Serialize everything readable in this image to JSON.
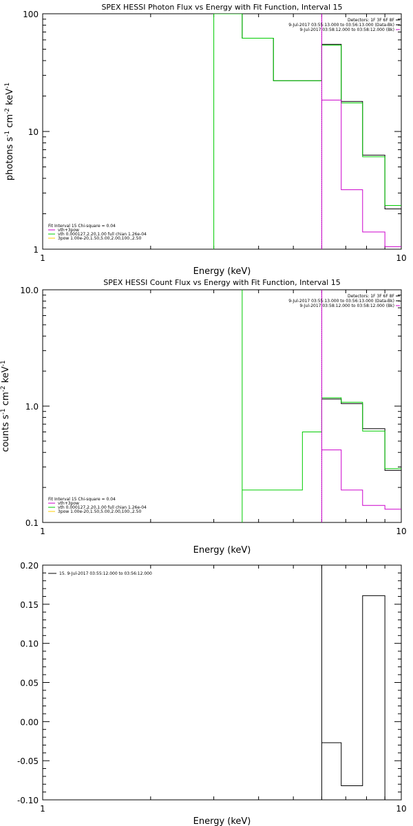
{
  "chart_data": [
    {
      "type": "line",
      "title": "SPEX HESSI Photon Flux vs Energy with Fit Function, Interval 15",
      "xlabel": "Energy (keV)",
      "ylabel_parts": [
        "photons s",
        "-1",
        " cm",
        "-2",
        " keV",
        "-1"
      ],
      "xscale": "log",
      "yscale": "log",
      "xlim": [
        1,
        10
      ],
      "ylim": [
        1,
        100
      ],
      "xticks": [
        {
          "v": 1,
          "label": "1"
        },
        {
          "v": 10,
          "label": "10"
        }
      ],
      "yticks": [
        {
          "v": 1,
          "label": "1"
        },
        {
          "v": 10,
          "label": "10"
        },
        {
          "v": 100,
          "label": "100"
        }
      ],
      "marker_line_x": 6,
      "header": [
        {
          "text": "Detectors: 1F 3F 6F 8F",
          "color": "#000000"
        },
        {
          "text": "9-Jul-2017 03:55:13.000 to 03:56:13.000 (Data-Bk)",
          "color": "#000000"
        },
        {
          "text": "9-Jul-2017 03:58:12.000 to 03:58:12.000 (Bk)",
          "color": "#cc00cc"
        }
      ],
      "legend": [
        {
          "text": "Fit Interval 15   Chi-square = 0.04",
          "color": "#000000"
        },
        {
          "text": "vth+3pow",
          "color": "#cc00cc"
        },
        {
          "text": "vth 0.000127,2.20,1.00  full chian 1.26e-04",
          "color": "#00cc00"
        },
        {
          "text": "3pow 1.00e-20,1.50,5.00,2.00,100.,2.50",
          "color": "#ffcc00"
        }
      ],
      "series": [
        {
          "color": "#000000",
          "edges": [
            3,
            3.6,
            4.4,
            5.3,
            6,
            6.8,
            7.8,
            9,
            10.2
          ],
          "values": [
            100,
            62,
            27,
            27,
            55,
            18,
            6.3,
            2.2
          ]
        },
        {
          "color": "#00cc00",
          "edges": [
            3,
            3.6,
            4.4,
            5.3,
            6,
            6.8,
            7.8,
            9,
            10.2
          ],
          "values": [
            100,
            62,
            27,
            27,
            54,
            17.5,
            6.1,
            2.35
          ]
        },
        {
          "color": "#cc00cc",
          "edges": [
            6,
            6.8,
            7.8,
            9,
            10.2
          ],
          "values": [
            18.5,
            3.2,
            1.4,
            1.05
          ]
        }
      ],
      "vlines": [
        {
          "x": 3,
          "color": "#00cc00"
        },
        {
          "x": 6,
          "color": "#cc00cc"
        }
      ]
    },
    {
      "type": "line",
      "title": "SPEX HESSI Count Flux vs Energy with Fit Function, Interval 15",
      "xlabel": "Energy (keV)",
      "ylabel_parts": [
        "counts s",
        "-1",
        " cm",
        "-2",
        " keV",
        "-1"
      ],
      "xscale": "log",
      "yscale": "log",
      "xlim": [
        1,
        10
      ],
      "ylim": [
        0.1,
        10
      ],
      "xticks": [
        {
          "v": 1,
          "label": "1"
        },
        {
          "v": 10,
          "label": "10"
        }
      ],
      "yticks": [
        {
          "v": 0.1,
          "label": "0.1"
        },
        {
          "v": 1,
          "label": "1.0"
        },
        {
          "v": 10,
          "label": "10.0"
        }
      ],
      "marker_line_x": 6,
      "header": [
        {
          "text": "Detectors: 1F 3F 6F 8F",
          "color": "#000000"
        },
        {
          "text": "9-Jul-2017 03:55:13.000 to 03:56:13.000 (Data-Bk)",
          "color": "#000000"
        },
        {
          "text": "9-Jul-2017 03:58:12.000 to 03:58:12.000 (Bk)",
          "color": "#cc00cc"
        }
      ],
      "legend": [
        {
          "text": "Fit Interval 15   Chi-square = 0.04",
          "color": "#000000"
        },
        {
          "text": "vth+3pow",
          "color": "#cc00cc"
        },
        {
          "text": "vth 0.000127,2.20,1.00  full chian 1.26e-04",
          "color": "#00cc00"
        },
        {
          "text": "3pow 1.00e-20,1.50,5.00,2.00,100.,2.50",
          "color": "#ffcc00"
        }
      ],
      "series": [
        {
          "color": "#000000",
          "edges": [
            6,
            6.8,
            7.8,
            9,
            10.2
          ],
          "values": [
            1.15,
            1.05,
            0.64,
            0.28
          ]
        },
        {
          "color": "#00cc00",
          "edges": [
            3.6,
            4.4,
            5.3,
            6,
            6.8,
            7.8,
            9,
            10.2
          ],
          "values": [
            0.19,
            0.19,
            0.6,
            1.18,
            1.08,
            0.61,
            0.29
          ]
        },
        {
          "color": "#cc00cc",
          "edges": [
            6,
            6.8,
            7.8,
            9,
            10.2
          ],
          "values": [
            0.42,
            0.19,
            0.14,
            0.13
          ]
        }
      ],
      "vlines": [
        {
          "x": 3.6,
          "color": "#00cc00"
        },
        {
          "x": 6,
          "color": "#cc00cc"
        }
      ]
    },
    {
      "type": "line",
      "title": "",
      "xlabel": "Energy (keV)",
      "xscale": "log",
      "yscale": "linear",
      "xlim": [
        1,
        10
      ],
      "ylim": [
        -0.1,
        0.2
      ],
      "xticks": [
        {
          "v": 1,
          "label": "1"
        },
        {
          "v": 10,
          "label": "10"
        }
      ],
      "yticks": [
        {
          "v": -0.1,
          "label": "-0.10"
        },
        {
          "v": -0.05,
          "label": "-0.05"
        },
        {
          "v": 0,
          "label": "0.00"
        },
        {
          "v": 0.05,
          "label": "0.05"
        },
        {
          "v": 0.1,
          "label": "0.10"
        },
        {
          "v": 0.15,
          "label": "0.15"
        },
        {
          "v": 0.2,
          "label": "0.20"
        }
      ],
      "legend": [
        {
          "text": "15.  9-Jul-2017 03:55:12.000 to 03:56:12.000",
          "color": "#000000"
        }
      ],
      "series": [
        {
          "color": "#000000",
          "edges": [
            6,
            6.8,
            7.8,
            9,
            10.2
          ],
          "values": [
            -0.027,
            -0.082,
            0.161,
            -0.102
          ]
        }
      ],
      "vlines": [
        {
          "x": 6,
          "color": "#000000"
        }
      ]
    }
  ]
}
